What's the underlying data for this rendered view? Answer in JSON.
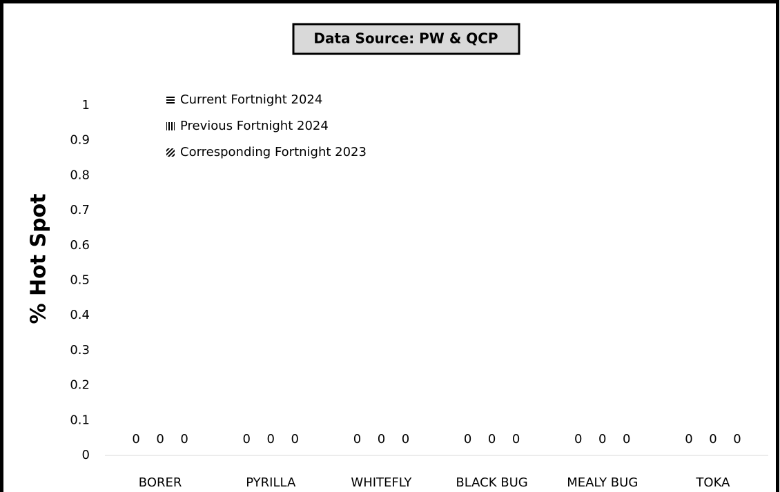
{
  "chart_data": {
    "type": "bar",
    "title": "Data Source: PW & QCP",
    "y_label": "% Hot Spot",
    "categories": [
      "BORER",
      "PYRILLA",
      "WHITEFLY",
      "BLACK BUG",
      "MEALY BUG",
      "TOKA"
    ],
    "series": [
      {
        "name": "Current Fortnight 2024",
        "color": "#000000",
        "pattern": "horizontal",
        "values": [
          0,
          0,
          0,
          0,
          0,
          0
        ]
      },
      {
        "name": "Previous Fortnight 2024",
        "color": "#000000",
        "pattern": "vertical",
        "values": [
          0,
          0,
          0,
          0,
          0,
          0
        ]
      },
      {
        "name": "Corresponding Fortnight 2023",
        "color": "#000000",
        "pattern": "diagonal",
        "values": [
          0,
          0,
          0,
          0,
          0,
          0
        ]
      }
    ],
    "ylim": [
      0,
      1
    ],
    "yticks": [
      0,
      0.1,
      0.2,
      0.3,
      0.4,
      0.5,
      0.6,
      0.7,
      0.8,
      0.9,
      1
    ],
    "grid": false,
    "legend": "top-left",
    "data_labels": true
  }
}
